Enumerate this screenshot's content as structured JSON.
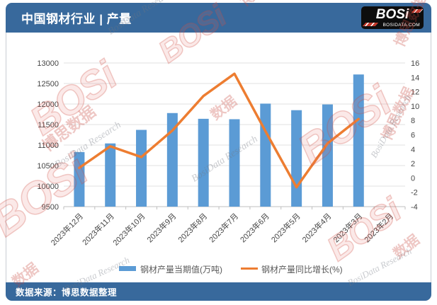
{
  "header": {
    "title": "中国钢材行业 | 产量",
    "logo": {
      "brand": "BOSi",
      "site": "BOSIDATA.COM"
    }
  },
  "footer": {
    "source": "数据来源：博思数据整理"
  },
  "watermark": {
    "brand": "BOSi",
    "brand_cn": "博思数据",
    "short_cn": "数据",
    "research": "BosiData Research"
  },
  "colors": {
    "header_bg": "#38699C",
    "footer_bg": "#38699C",
    "bar": "#5B9BD5",
    "line": "#ED7D31",
    "grid": "#E2E2E2",
    "axis_line": "#BFBFBF",
    "axis_text": "#464646",
    "legend_text": "#595959"
  },
  "chart_data": {
    "type": "bar",
    "subtype": "combo-bar-line",
    "categories": [
      "2023年12月",
      "2023年11月",
      "2023年10月",
      "2023年9月",
      "2023年8月",
      "2023年7月",
      "2023年6月",
      "2023年5月",
      "2023年4月",
      "2023年3月",
      "2023年2月"
    ],
    "series": [
      {
        "name": "钢材产量当期值(万吨)",
        "type": "bar",
        "y_axis": "left",
        "color": "#5B9BD5",
        "values": [
          10830,
          11040,
          11370,
          11780,
          11640,
          11630,
          12010,
          11850,
          11990,
          12720,
          null
        ]
      },
      {
        "name": "钢材产量同比增长(%)",
        "type": "line",
        "y_axis": "right",
        "color": "#ED7D31",
        "values": [
          1.4,
          4.4,
          2.9,
          6.6,
          11.4,
          14.5,
          6.5,
          -1.3,
          4.8,
          8.2,
          null
        ]
      }
    ],
    "left_axis": {
      "min": 9500,
      "max": 13000,
      "step": 500
    },
    "right_axis": {
      "min": -4,
      "max": 16,
      "step": 2
    },
    "grid": true,
    "legend_position": "bottom",
    "title": "",
    "xlabel": "",
    "ylabel": ""
  }
}
